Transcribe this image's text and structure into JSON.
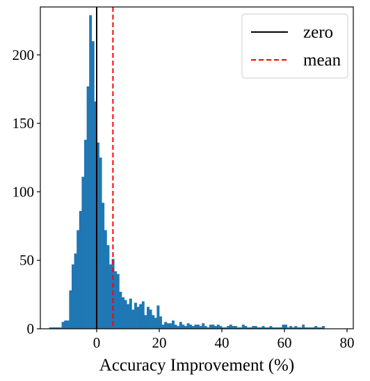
{
  "chart_data": {
    "type": "bar",
    "subtype": "histogram",
    "title": "",
    "xlabel": "Accuracy Improvement (%)",
    "ylabel": "",
    "xlim": [
      -18,
      82
    ],
    "ylim": [
      0,
      235
    ],
    "xticks": [
      0,
      20,
      40,
      60,
      80
    ],
    "yticks": [
      0,
      50,
      100,
      150,
      200
    ],
    "grid": false,
    "legend": {
      "placement": "top-right",
      "entries": [
        "zero",
        "mean"
      ]
    },
    "bar_color": "#1f77b4",
    "bin_width": 0.8,
    "bin_start": -15.2,
    "counts": [
      1,
      1,
      1,
      1,
      1,
      5,
      6,
      6,
      28,
      47,
      55,
      72,
      86,
      111,
      138,
      177,
      229,
      210,
      166,
      136,
      125,
      92,
      72,
      61,
      47,
      51,
      42,
      40,
      27,
      23,
      21,
      18,
      22,
      14,
      19,
      16,
      18,
      20,
      10,
      16,
      14,
      10,
      8,
      17,
      9,
      3,
      5,
      4,
      4,
      6,
      3,
      2,
      5,
      3,
      2,
      4,
      3,
      2,
      3,
      3,
      2,
      4,
      2,
      1,
      3,
      3,
      2,
      3,
      2,
      1,
      1,
      2,
      3,
      2,
      2,
      1,
      1,
      3,
      2,
      1,
      1,
      2,
      2,
      1,
      1,
      2,
      1,
      1,
      2,
      1,
      1,
      1,
      1,
      3,
      3,
      1,
      2,
      1,
      2,
      1,
      1,
      3,
      1,
      1,
      1,
      1,
      2,
      1,
      1,
      2
    ],
    "vlines": [
      {
        "name": "zero",
        "x": 0,
        "color": "#000000",
        "style": "solid"
      },
      {
        "name": "mean",
        "x": 5.2,
        "color": "#ff0000",
        "style": "dashed"
      }
    ]
  }
}
